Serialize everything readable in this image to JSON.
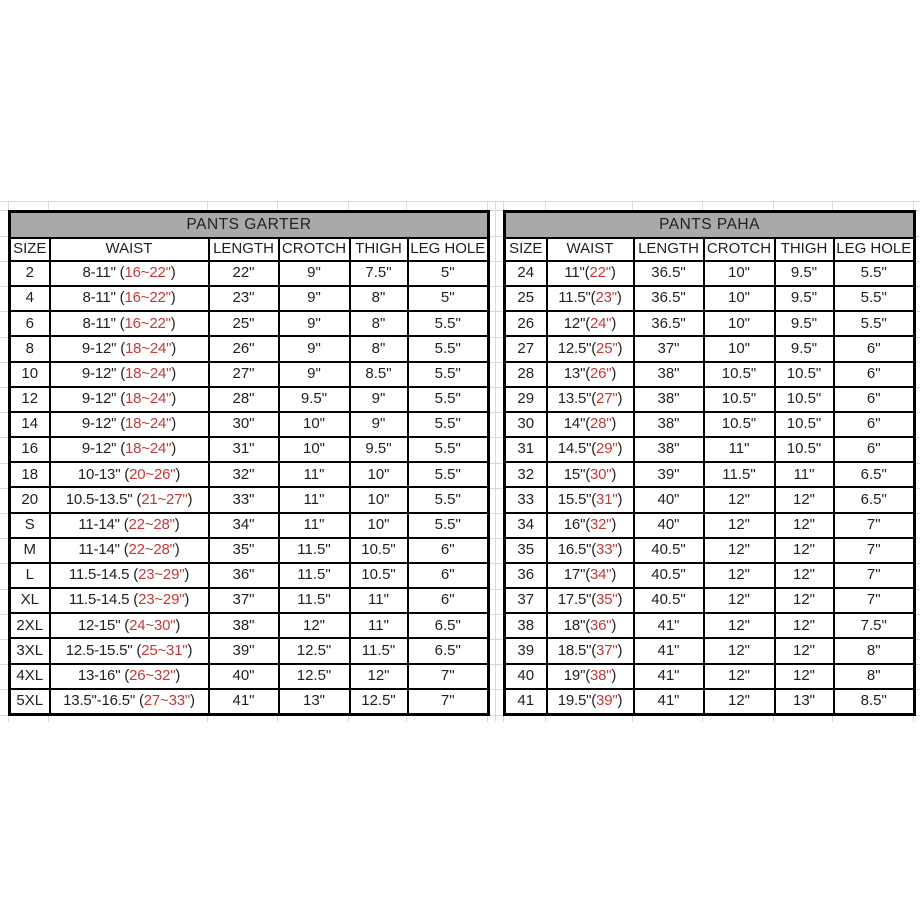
{
  "colors": {
    "title_bg": "#a9a9a9",
    "border": "#000000",
    "text": "#1f1f1f",
    "accent_red": "#c03a3a",
    "gridline": "#d9d9d9",
    "background": "#ffffff"
  },
  "tables": [
    {
      "title": "PANTS GARTER",
      "columns": [
        "SIZE",
        "WAIST",
        "LENGTH",
        "CROTCH",
        "THIGH",
        "LEG HOLE"
      ],
      "rows": [
        {
          "size": "2",
          "waist_prefix": "8-11\" (",
          "waist_red": "16~22\"",
          "waist_suffix": ")",
          "length": "22\"",
          "crotch": "9\"",
          "thigh": "7.5\"",
          "leg_hole": "5\""
        },
        {
          "size": "4",
          "waist_prefix": "8-11\" (",
          "waist_red": "16~22\"",
          "waist_suffix": ")",
          "length": "23\"",
          "crotch": "9\"",
          "thigh": "8\"",
          "leg_hole": "5\""
        },
        {
          "size": "6",
          "waist_prefix": "8-11\" (",
          "waist_red": "16~22\"",
          "waist_suffix": ")",
          "length": "25\"",
          "crotch": "9\"",
          "thigh": "8\"",
          "leg_hole": "5.5\""
        },
        {
          "size": "8",
          "waist_prefix": "9-12\" (",
          "waist_red": "18~24\"",
          "waist_suffix": ")",
          "length": "26\"",
          "crotch": "9\"",
          "thigh": "8\"",
          "leg_hole": "5.5\""
        },
        {
          "size": "10",
          "waist_prefix": "9-12\" (",
          "waist_red": "18~24\"",
          "waist_suffix": ")",
          "length": "27\"",
          "crotch": "9\"",
          "thigh": "8.5\"",
          "leg_hole": "5.5\""
        },
        {
          "size": "12",
          "waist_prefix": "9-12\" (",
          "waist_red": "18~24\"",
          "waist_suffix": ")",
          "length": "28\"",
          "crotch": "9.5\"",
          "thigh": "9\"",
          "leg_hole": "5.5\""
        },
        {
          "size": "14",
          "waist_prefix": "9-12\" (",
          "waist_red": "18~24\"",
          "waist_suffix": ")",
          "length": "30\"",
          "crotch": "10\"",
          "thigh": "9\"",
          "leg_hole": "5.5\""
        },
        {
          "size": "16",
          "waist_prefix": "9-12\" (",
          "waist_red": "18~24\"",
          "waist_suffix": ")",
          "length": "31\"",
          "crotch": "10\"",
          "thigh": "9.5\"",
          "leg_hole": "5.5\""
        },
        {
          "size": "18",
          "waist_prefix": "10-13\" (",
          "waist_red": "20~26\"",
          "waist_suffix": ")",
          "length": "32\"",
          "crotch": "11\"",
          "thigh": "10\"",
          "leg_hole": "5.5\""
        },
        {
          "size": "20",
          "waist_prefix": "10.5-13.5\" (",
          "waist_red": "21~27\"",
          "waist_suffix": ")",
          "length": "33\"",
          "crotch": "11\"",
          "thigh": "10\"",
          "leg_hole": "5.5\""
        },
        {
          "size": "S",
          "waist_prefix": "11-14\" (",
          "waist_red": "22~28\"",
          "waist_suffix": ")",
          "length": "34\"",
          "crotch": "11\"",
          "thigh": "10\"",
          "leg_hole": "5.5\""
        },
        {
          "size": "M",
          "waist_prefix": "11-14\" (",
          "waist_red": "22~28\"",
          "waist_suffix": ")",
          "length": "35\"",
          "crotch": "11.5\"",
          "thigh": "10.5\"",
          "leg_hole": "6\""
        },
        {
          "size": "L",
          "waist_prefix": "11.5-14.5 (",
          "waist_red": "23~29\"",
          "waist_suffix": ")",
          "length": "36\"",
          "crotch": "11.5\"",
          "thigh": "10.5\"",
          "leg_hole": "6\""
        },
        {
          "size": "XL",
          "waist_prefix": "11.5-14.5 (",
          "waist_red": "23~29\"",
          "waist_suffix": ")",
          "length": "37\"",
          "crotch": "11.5\"",
          "thigh": "11\"",
          "leg_hole": "6\""
        },
        {
          "size": "2XL",
          "waist_prefix": "12-15\" (",
          "waist_red": "24~30\"",
          "waist_suffix": ")",
          "length": "38\"",
          "crotch": "12\"",
          "thigh": "11\"",
          "leg_hole": "6.5\""
        },
        {
          "size": "3XL",
          "waist_prefix": "12.5-15.5\" (",
          "waist_red": "25~31\"",
          "waist_suffix": ")",
          "length": "39\"",
          "crotch": "12.5\"",
          "thigh": "11.5\"",
          "leg_hole": "6.5\""
        },
        {
          "size": "4XL",
          "waist_prefix": "13-16\" (",
          "waist_red": "26~32\"",
          "waist_suffix": ")",
          "length": "40\"",
          "crotch": "12.5\"",
          "thigh": "12\"",
          "leg_hole": "7\""
        },
        {
          "size": "5XL",
          "waist_prefix": "13.5\"-16.5\" (",
          "waist_red": "27~33\"",
          "waist_suffix": ")",
          "length": "41\"",
          "crotch": "13\"",
          "thigh": "12.5\"",
          "leg_hole": "7\""
        }
      ]
    },
    {
      "title": "PANTS PAHA",
      "columns": [
        "SIZE",
        "WAIST",
        "LENGTH",
        "CROTCH",
        "THIGH",
        "LEG HOLE"
      ],
      "rows": [
        {
          "size": "24",
          "waist_prefix": "11\"(",
          "waist_red": "22\"",
          "waist_suffix": ")",
          "length": "36.5\"",
          "crotch": "10\"",
          "thigh": "9.5\"",
          "leg_hole": "5.5\""
        },
        {
          "size": "25",
          "waist_prefix": "11.5\"(",
          "waist_red": "23\"",
          "waist_suffix": ")",
          "length": "36.5\"",
          "crotch": "10\"",
          "thigh": "9.5\"",
          "leg_hole": "5.5\""
        },
        {
          "size": "26",
          "waist_prefix": "12\"(",
          "waist_red": "24\"",
          "waist_suffix": ")",
          "length": "36.5\"",
          "crotch": "10\"",
          "thigh": "9.5\"",
          "leg_hole": "5.5\""
        },
        {
          "size": "27",
          "waist_prefix": "12.5\"(",
          "waist_red": "25\"",
          "waist_suffix": ")",
          "length": "37\"",
          "crotch": "10\"",
          "thigh": "9.5\"",
          "leg_hole": "6\""
        },
        {
          "size": "28",
          "waist_prefix": "13\"(",
          "waist_red": "26\"",
          "waist_suffix": ")",
          "length": "38\"",
          "crotch": "10.5\"",
          "thigh": "10.5\"",
          "leg_hole": "6\""
        },
        {
          "size": "29",
          "waist_prefix": "13.5\"(",
          "waist_red": "27\"",
          "waist_suffix": ")",
          "length": "38\"",
          "crotch": "10.5\"",
          "thigh": "10.5\"",
          "leg_hole": "6\""
        },
        {
          "size": "30",
          "waist_prefix": "14\"(",
          "waist_red": "28\"",
          "waist_suffix": ")",
          "length": "38\"",
          "crotch": "10.5\"",
          "thigh": "10.5\"",
          "leg_hole": "6\""
        },
        {
          "size": "31",
          "waist_prefix": "14.5\"(",
          "waist_red": "29\"",
          "waist_suffix": ")",
          "length": "38\"",
          "crotch": "11\"",
          "thigh": "10.5\"",
          "leg_hole": "6\""
        },
        {
          "size": "32",
          "waist_prefix": "15\"(",
          "waist_red": "30\"",
          "waist_suffix": ")",
          "length": "39\"",
          "crotch": "11.5\"",
          "thigh": "11\"",
          "leg_hole": "6.5\""
        },
        {
          "size": "33",
          "waist_prefix": "15.5\"(",
          "waist_red": "31\"",
          "waist_suffix": ")",
          "length": "40\"",
          "crotch": "12\"",
          "thigh": "12\"",
          "leg_hole": "6.5\""
        },
        {
          "size": "34",
          "waist_prefix": "16\"(",
          "waist_red": "32\"",
          "waist_suffix": ")",
          "length": "40\"",
          "crotch": "12\"",
          "thigh": "12\"",
          "leg_hole": "7\""
        },
        {
          "size": "35",
          "waist_prefix": "16.5\"(",
          "waist_red": "33\"",
          "waist_suffix": ")",
          "length": "40.5\"",
          "crotch": "12\"",
          "thigh": "12\"",
          "leg_hole": "7\""
        },
        {
          "size": "36",
          "waist_prefix": "17\"(",
          "waist_red": "34\"",
          "waist_suffix": ")",
          "length": "40.5\"",
          "crotch": "12\"",
          "thigh": "12\"",
          "leg_hole": "7\""
        },
        {
          "size": "37",
          "waist_prefix": "17.5\"(",
          "waist_red": "35\"",
          "waist_suffix": ")",
          "length": "40.5\"",
          "crotch": "12\"",
          "thigh": "12\"",
          "leg_hole": "7\""
        },
        {
          "size": "38",
          "waist_prefix": "18\"(",
          "waist_red": "36\"",
          "waist_suffix": ")",
          "length": "41\"",
          "crotch": "12\"",
          "thigh": "12\"",
          "leg_hole": "7.5\""
        },
        {
          "size": "39",
          "waist_prefix": "18.5\"(",
          "waist_red": "37\"",
          "waist_suffix": ")",
          "length": "41\"",
          "crotch": "12\"",
          "thigh": "12\"",
          "leg_hole": "8\""
        },
        {
          "size": "40",
          "waist_prefix": "19\"(",
          "waist_red": "38\"",
          "waist_suffix": ")",
          "length": "41\"",
          "crotch": "12\"",
          "thigh": "12\"",
          "leg_hole": "8\""
        },
        {
          "size": "41",
          "waist_prefix": "19.5\"(",
          "waist_red": "39\"",
          "waist_suffix": ")",
          "length": "41\"",
          "crotch": "12\"",
          "thigh": "13\"",
          "leg_hole": "8.5\""
        }
      ]
    }
  ]
}
